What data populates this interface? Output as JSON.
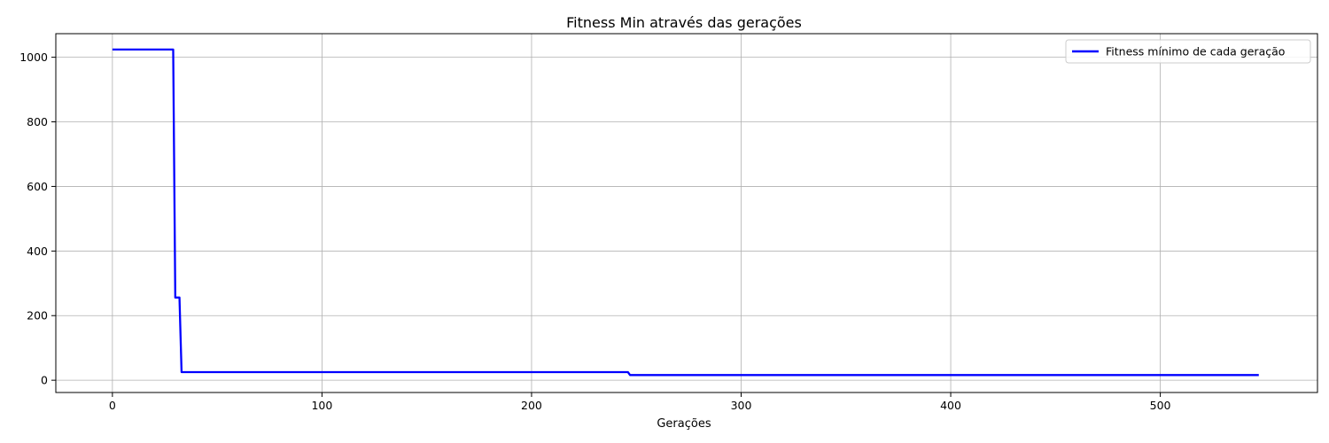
{
  "chart_data": {
    "type": "line",
    "title": "Fitness Min através das gerações",
    "xlabel": "Gerações",
    "ylabel": "",
    "xlim": [
      -27,
      575
    ],
    "ylim": [
      -38,
      1073
    ],
    "xticks": [
      0,
      100,
      200,
      300,
      400,
      500
    ],
    "yticks": [
      0,
      200,
      400,
      600,
      800,
      1000
    ],
    "xtick_labels": [
      "0",
      "100",
      "200",
      "300",
      "400",
      "500"
    ],
    "ytick_labels": [
      "0",
      "200",
      "400",
      "600",
      "800",
      "1000"
    ],
    "grid": true,
    "legend_position": "top-right",
    "series": [
      {
        "name": "Fitness mínimo de cada geração",
        "color": "#0000ff",
        "x": [
          0,
          29,
          30,
          32,
          33,
          246,
          247,
          547
        ],
        "y": [
          1024,
          1024,
          256,
          256,
          25,
          25,
          16,
          16
        ]
      }
    ]
  }
}
